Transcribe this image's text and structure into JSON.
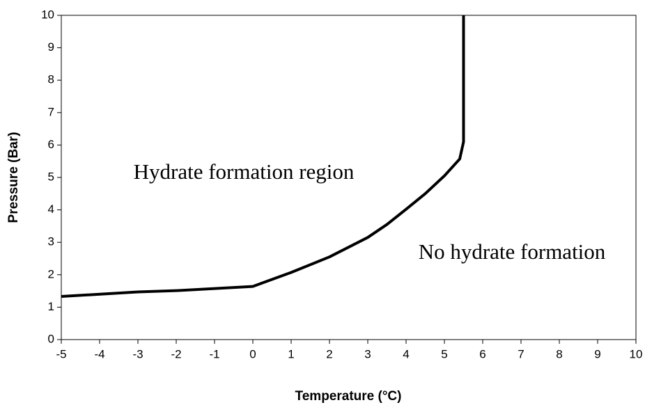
{
  "chart_data": {
    "type": "line",
    "xlabel": "Temperature (°C)",
    "ylabel": "Pressure (Bar)",
    "annotations": [
      "Hydrate formation region",
      "No hydrate formation"
    ],
    "x": [
      -5,
      -3,
      -2,
      0,
      1,
      2,
      3,
      3.5,
      4,
      4.5,
      5,
      5.4,
      5.5,
      5.5
    ],
    "series": [
      {
        "color": "#000000",
        "values": [
          1.33,
          1.47,
          1.51,
          1.64,
          2.07,
          2.55,
          3.15,
          3.55,
          4.02,
          4.5,
          5.05,
          5.57,
          6.1,
          10
        ]
      }
    ],
    "xlim": [
      -5,
      10
    ],
    "xticks": [
      -5,
      -4,
      -3,
      -2,
      -1,
      0,
      1,
      2,
      3,
      4,
      5,
      6,
      7,
      8,
      9,
      10
    ],
    "ylim": [
      0,
      10
    ],
    "yticks": [
      0,
      1,
      2,
      3,
      4,
      5,
      6,
      7,
      8,
      9,
      10
    ]
  }
}
